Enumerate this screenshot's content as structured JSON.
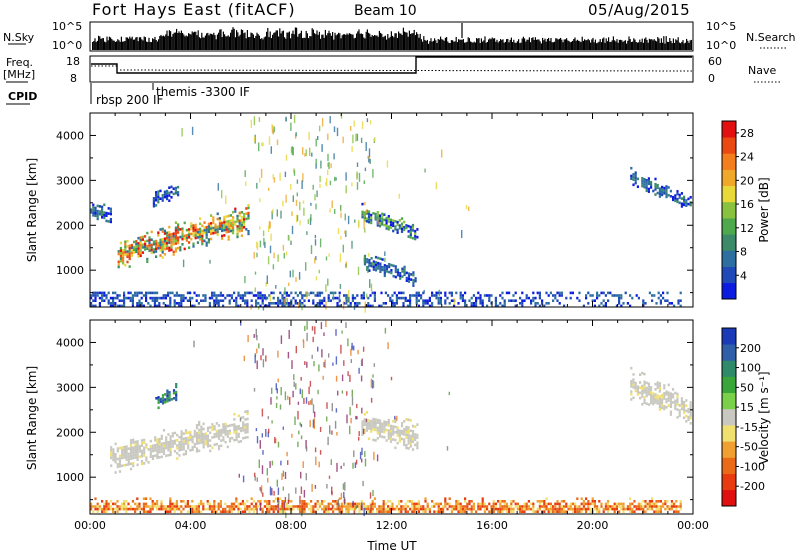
{
  "header": {
    "station": "Fort Hays East (fitACF)",
    "beam": "Beam 10",
    "date": "05/Aug/2015"
  },
  "strip_labels": {
    "nsky": "N.Sky",
    "nsearch": "N.Search",
    "freq_top": "Freq.",
    "freq_bottom": "[MHz]",
    "nave": "Nave",
    "cpid": "CPID",
    "nsky_ticks": [
      "10^5",
      "10^0"
    ],
    "nsearch_ticks": [
      "10^5",
      "10^0"
    ],
    "freq_ticks": [
      "18",
      "8"
    ],
    "nave_ticks": [
      "60",
      "0"
    ]
  },
  "cpid_labels": [
    "rbsp 200 IF",
    "themis -3300 IF"
  ],
  "chart_data": [
    {
      "type": "heatmap",
      "panel": "power",
      "ylabel": "Slant Range [km]",
      "xlabel": "",
      "xlim": [
        0,
        24
      ],
      "ylim": [
        180,
        4500
      ],
      "yticks": [
        "1000",
        "2000",
        "3000",
        "4000"
      ],
      "colorbar": {
        "label": "Power [dB]",
        "ticks": [
          "4",
          "8",
          "12",
          "16",
          "20",
          "24",
          "28"
        ],
        "colors": [
          "#0c1be0",
          "#1f4ab8",
          "#2d6fa0",
          "#3c8a6a",
          "#4ea84c",
          "#88c23e",
          "#e8d838",
          "#f0a82a",
          "#f27e1e",
          "#ea4a12",
          "#e21010"
        ],
        "range": [
          0,
          30
        ]
      },
      "features": [
        {
          "time_start": 1.1,
          "time_end": 6.3,
          "range_center_start": 1380,
          "range_center_end": 2180,
          "level": "high"
        },
        {
          "time_start": 0.0,
          "time_end": 0.8,
          "range_center_start": 2350,
          "range_center_end": 2250,
          "level": "low"
        },
        {
          "time_start": 2.5,
          "time_end": 3.5,
          "range_center_start": 2600,
          "range_center_end": 2800,
          "level": "low"
        },
        {
          "time_start": 10.8,
          "time_end": 13.0,
          "range_center_start": 2300,
          "range_center_end": 1850,
          "level": "mid"
        },
        {
          "time_start": 10.9,
          "time_end": 13.0,
          "range_center_start": 1200,
          "range_center_end": 800,
          "level": "low"
        },
        {
          "time_start": 21.5,
          "time_end": 23.9,
          "range_center_start": 3100,
          "range_center_end": 2500,
          "level": "low"
        },
        {
          "time_start": 0.0,
          "time_end": 23.5,
          "range_center_start": 300,
          "range_center_end": 300,
          "level": "ground"
        }
      ]
    },
    {
      "type": "heatmap",
      "panel": "velocity",
      "ylabel": "Slant Range [km]",
      "xlabel": "Time UT",
      "xlim": [
        0,
        24
      ],
      "ylim": [
        180,
        4500
      ],
      "xticks": [
        "00:00",
        "04:00",
        "08:00",
        "12:00",
        "16:00",
        "20:00",
        "00:00"
      ],
      "yticks": [
        "1000",
        "2000",
        "3000",
        "4000"
      ],
      "colorbar": {
        "label": "Velocity [m s⁻¹]",
        "ticks": [
          "200",
          "100",
          "50",
          "15",
          "-15",
          "-50",
          "-100",
          "-200"
        ],
        "colors": [
          "#1a3ab8",
          "#2f5fa8",
          "#2f8a6a",
          "#3aa63a",
          "#7ad048",
          "#c8c8c0",
          "#f0e070",
          "#f0a030",
          "#ea6a18",
          "#e83c10",
          "#e01010"
        ],
        "range": [
          -250,
          250
        ]
      },
      "features": [
        {
          "time_start": 0.8,
          "time_end": 6.3,
          "range_center_start": 1450,
          "range_center_end": 2150,
          "level": "gray"
        },
        {
          "time_start": 2.6,
          "time_end": 3.4,
          "range_center_start": 2700,
          "range_center_end": 2900,
          "level": "positive"
        },
        {
          "time_start": 10.8,
          "time_end": 13.0,
          "range_center_start": 2200,
          "range_center_end": 1900,
          "level": "gray"
        },
        {
          "time_start": 21.5,
          "time_end": 23.9,
          "range_center_start": 3100,
          "range_center_end": 2500,
          "level": "gray"
        },
        {
          "time_start": 0.0,
          "time_end": 23.5,
          "range_center_start": 350,
          "range_center_end": 350,
          "level": "negative"
        }
      ]
    }
  ]
}
